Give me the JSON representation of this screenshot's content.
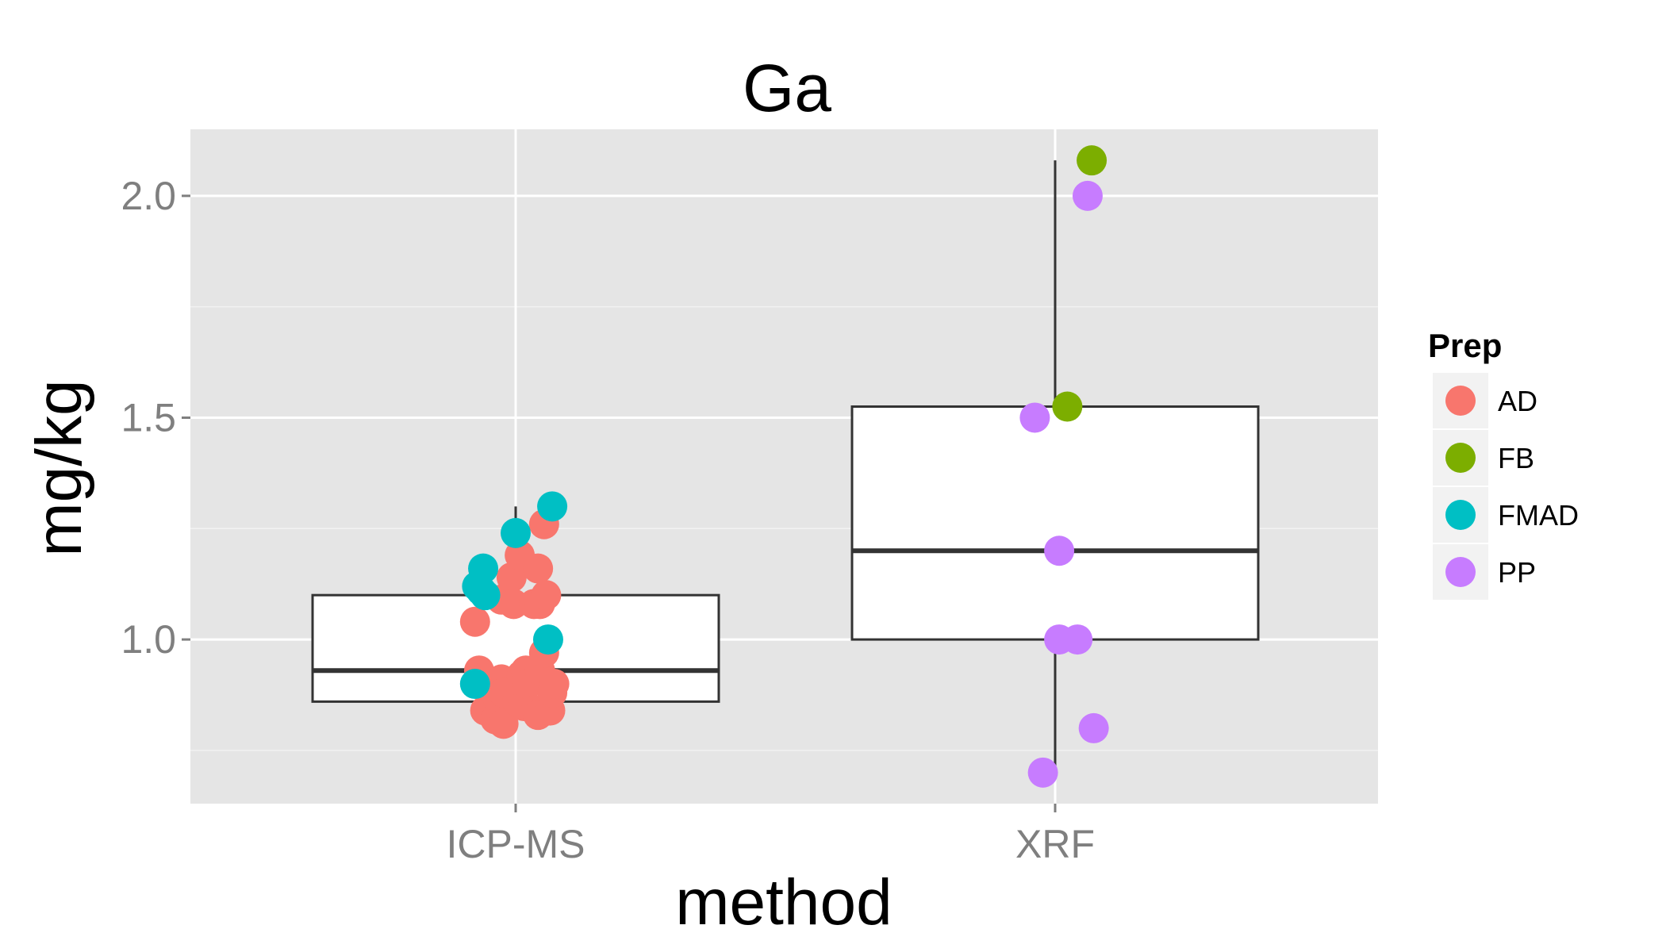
{
  "chart_data": {
    "type": "boxplot",
    "title": "Ga",
    "xlabel": "method",
    "ylabel": "mg/kg",
    "categories": [
      "ICP-MS",
      "XRF"
    ],
    "ylim": [
      0.63,
      2.15
    ],
    "yticks": [
      1.0,
      1.5,
      2.0
    ],
    "ytick_labels": [
      "1.0",
      "1.5",
      "2.0"
    ],
    "grid": true,
    "legend": {
      "title": "Prep",
      "placement": "right",
      "entries": [
        {
          "label": "AD",
          "color": "#F8766D"
        },
        {
          "label": "FB",
          "color": "#7CAE00"
        },
        {
          "label": "FMAD",
          "color": "#00BFC4"
        },
        {
          "label": "PP",
          "color": "#C77CFF"
        }
      ]
    },
    "boxes": [
      {
        "category": "ICP-MS",
        "whisker_low": 0.8,
        "q1": 0.86,
        "median": 0.93,
        "q3": 1.1,
        "whisker_high": 1.3
      },
      {
        "category": "XRF",
        "whisker_low": 0.7,
        "q1": 1.0,
        "median": 1.2,
        "q3": 1.525,
        "whisker_high": 2.08
      }
    ],
    "points": [
      {
        "category": "ICP-MS",
        "prep": "AD",
        "jitter": -0.2,
        "y": 1.04
      },
      {
        "category": "ICP-MS",
        "prep": "AD",
        "jitter": -0.18,
        "y": 0.93
      },
      {
        "category": "ICP-MS",
        "prep": "AD",
        "jitter": -0.15,
        "y": 0.84
      },
      {
        "category": "ICP-MS",
        "prep": "AD",
        "jitter": -0.11,
        "y": 0.85
      },
      {
        "category": "ICP-MS",
        "prep": "AD",
        "jitter": -0.1,
        "y": 0.82
      },
      {
        "category": "ICP-MS",
        "prep": "AD",
        "jitter": -0.09,
        "y": 0.87
      },
      {
        "category": "ICP-MS",
        "prep": "AD",
        "jitter": -0.07,
        "y": 1.09
      },
      {
        "category": "ICP-MS",
        "prep": "AD",
        "jitter": -0.07,
        "y": 0.91
      },
      {
        "category": "ICP-MS",
        "prep": "AD",
        "jitter": -0.06,
        "y": 0.88
      },
      {
        "category": "ICP-MS",
        "prep": "AD",
        "jitter": -0.06,
        "y": 0.81
      },
      {
        "category": "ICP-MS",
        "prep": "AD",
        "jitter": -0.02,
        "y": 1.14
      },
      {
        "category": "ICP-MS",
        "prep": "AD",
        "jitter": -0.01,
        "y": 1.08
      },
      {
        "category": "ICP-MS",
        "prep": "AD",
        "jitter": 0.01,
        "y": 0.86
      },
      {
        "category": "ICP-MS",
        "prep": "AD",
        "jitter": 0.02,
        "y": 1.19
      },
      {
        "category": "ICP-MS",
        "prep": "AD",
        "jitter": 0.03,
        "y": 0.92
      },
      {
        "category": "ICP-MS",
        "prep": "AD",
        "jitter": 0.04,
        "y": 0.85
      },
      {
        "category": "ICP-MS",
        "prep": "AD",
        "jitter": 0.05,
        "y": 0.93
      },
      {
        "category": "ICP-MS",
        "prep": "AD",
        "jitter": 0.06,
        "y": 0.9
      },
      {
        "category": "ICP-MS",
        "prep": "AD",
        "jitter": 0.09,
        "y": 1.08
      },
      {
        "category": "ICP-MS",
        "prep": "AD",
        "jitter": 0.1,
        "y": 0.84
      },
      {
        "category": "ICP-MS",
        "prep": "AD",
        "jitter": 0.11,
        "y": 1.16
      },
      {
        "category": "ICP-MS",
        "prep": "AD",
        "jitter": 0.11,
        "y": 0.83
      },
      {
        "category": "ICP-MS",
        "prep": "AD",
        "jitter": 0.12,
        "y": 1.08
      },
      {
        "category": "ICP-MS",
        "prep": "AD",
        "jitter": 0.12,
        "y": 0.93
      },
      {
        "category": "ICP-MS",
        "prep": "AD",
        "jitter": 0.14,
        "y": 0.97
      },
      {
        "category": "ICP-MS",
        "prep": "AD",
        "jitter": 0.14,
        "y": 1.26
      },
      {
        "category": "ICP-MS",
        "prep": "AD",
        "jitter": 0.15,
        "y": 1.1
      },
      {
        "category": "ICP-MS",
        "prep": "AD",
        "jitter": 0.17,
        "y": 0.84
      },
      {
        "category": "ICP-MS",
        "prep": "AD",
        "jitter": 0.18,
        "y": 0.88
      },
      {
        "category": "ICP-MS",
        "prep": "AD",
        "jitter": 0.19,
        "y": 0.9
      },
      {
        "category": "ICP-MS",
        "prep": "FMAD",
        "jitter": -0.2,
        "y": 0.9
      },
      {
        "category": "ICP-MS",
        "prep": "FMAD",
        "jitter": -0.19,
        "y": 1.12
      },
      {
        "category": "ICP-MS",
        "prep": "FMAD",
        "jitter": -0.17,
        "y": 1.11
      },
      {
        "category": "ICP-MS",
        "prep": "FMAD",
        "jitter": -0.16,
        "y": 1.16
      },
      {
        "category": "ICP-MS",
        "prep": "FMAD",
        "jitter": -0.15,
        "y": 1.1
      },
      {
        "category": "ICP-MS",
        "prep": "FMAD",
        "jitter": 0.0,
        "y": 1.24
      },
      {
        "category": "ICP-MS",
        "prep": "FMAD",
        "jitter": 0.16,
        "y": 1.0
      },
      {
        "category": "ICP-MS",
        "prep": "FMAD",
        "jitter": 0.18,
        "y": 1.3
      },
      {
        "category": "XRF",
        "prep": "FB",
        "jitter": 0.18,
        "y": 2.08
      },
      {
        "category": "XRF",
        "prep": "FB",
        "jitter": 0.06,
        "y": 1.525
      },
      {
        "category": "XRF",
        "prep": "PP",
        "jitter": 0.16,
        "y": 2.0
      },
      {
        "category": "XRF",
        "prep": "PP",
        "jitter": -0.1,
        "y": 1.5
      },
      {
        "category": "XRF",
        "prep": "PP",
        "jitter": 0.02,
        "y": 1.2
      },
      {
        "category": "XRF",
        "prep": "PP",
        "jitter": 0.02,
        "y": 1.0
      },
      {
        "category": "XRF",
        "prep": "PP",
        "jitter": 0.11,
        "y": 1.0
      },
      {
        "category": "XRF",
        "prep": "PP",
        "jitter": 0.19,
        "y": 0.8
      },
      {
        "category": "XRF",
        "prep": "PP",
        "jitter": -0.06,
        "y": 0.7
      }
    ]
  }
}
